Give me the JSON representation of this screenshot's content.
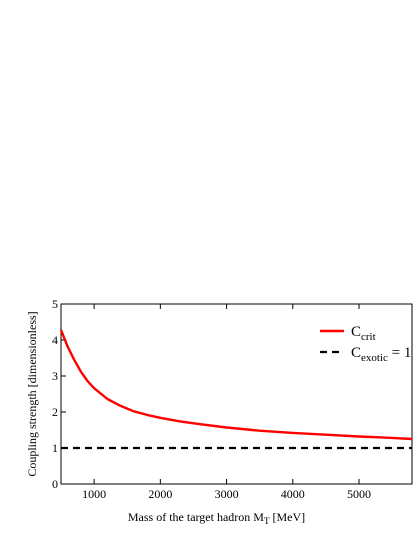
{
  "chart_data": {
    "type": "line",
    "title": "",
    "xlabel": {
      "text": "Mass of the target hadron M",
      "subscript": "T",
      "suffix": " [MeV]"
    },
    "ylabel": "Coupling strength [dimensionless]",
    "xlim": [
      500,
      5800
    ],
    "ylim": [
      0,
      5
    ],
    "x_ticks": [
      1000,
      2000,
      3000,
      4000,
      5000
    ],
    "y_ticks": [
      0,
      1,
      2,
      3,
      4,
      5
    ],
    "grid": false,
    "legend_position": "top-right",
    "series": [
      {
        "key": "crit",
        "name_main": "C",
        "name_sub": "crit",
        "name_suffix": "",
        "color": "#ff0000",
        "style": "solid",
        "x": [
          500,
          550,
          600,
          700,
          800,
          900,
          1000,
          1200,
          1400,
          1600,
          1800,
          2000,
          2300,
          2600,
          3000,
          3500,
          4000,
          4500,
          5000,
          5500,
          5800
        ],
        "values": [
          4.28,
          4.05,
          3.82,
          3.45,
          3.12,
          2.86,
          2.66,
          2.36,
          2.17,
          2.02,
          1.92,
          1.84,
          1.74,
          1.66,
          1.57,
          1.48,
          1.42,
          1.37,
          1.32,
          1.28,
          1.25
        ]
      },
      {
        "key": "exotic",
        "name_main": "C",
        "name_sub": "exotic",
        "name_suffix": " = 1",
        "color": "#000000",
        "style": "dashed",
        "x": [
          500,
          5800
        ],
        "values": [
          1,
          1
        ]
      }
    ]
  }
}
